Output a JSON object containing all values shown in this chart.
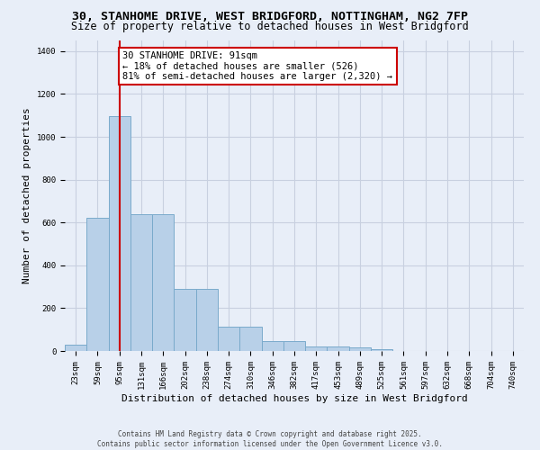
{
  "title_line1": "30, STANHOME DRIVE, WEST BRIDGFORD, NOTTINGHAM, NG2 7FP",
  "title_line2": "Size of property relative to detached houses in West Bridgford",
  "xlabel": "Distribution of detached houses by size in West Bridgford",
  "ylabel": "Number of detached properties",
  "categories": [
    "23sqm",
    "59sqm",
    "95sqm",
    "131sqm",
    "166sqm",
    "202sqm",
    "238sqm",
    "274sqm",
    "310sqm",
    "346sqm",
    "382sqm",
    "417sqm",
    "453sqm",
    "489sqm",
    "525sqm",
    "561sqm",
    "597sqm",
    "632sqm",
    "668sqm",
    "704sqm",
    "740sqm"
  ],
  "values": [
    28,
    622,
    1098,
    638,
    638,
    288,
    288,
    113,
    113,
    45,
    45,
    20,
    20,
    15,
    10,
    0,
    0,
    0,
    0,
    0,
    0
  ],
  "bar_color": "#b8d0e8",
  "bar_edge_color": "#7aaacb",
  "background_color": "#e8eef8",
  "grid_color": "#c8d0e0",
  "red_line_x": 2.0,
  "annotation_text": "30 STANHOME DRIVE: 91sqm\n← 18% of detached houses are smaller (526)\n81% of semi-detached houses are larger (2,320) →",
  "annotation_box_color": "#ffffff",
  "annotation_text_color": "#000000",
  "red_line_color": "#cc0000",
  "ylim": [
    0,
    1450
  ],
  "yticks": [
    0,
    200,
    400,
    600,
    800,
    1000,
    1200,
    1400
  ],
  "footer_line1": "Contains HM Land Registry data © Crown copyright and database right 2025.",
  "footer_line2": "Contains public sector information licensed under the Open Government Licence v3.0.",
  "title_fontsize": 9.5,
  "subtitle_fontsize": 8.5,
  "tick_fontsize": 6.5,
  "ylabel_fontsize": 8,
  "xlabel_fontsize": 8,
  "annotation_fontsize": 7.5,
  "footer_fontsize": 5.5
}
